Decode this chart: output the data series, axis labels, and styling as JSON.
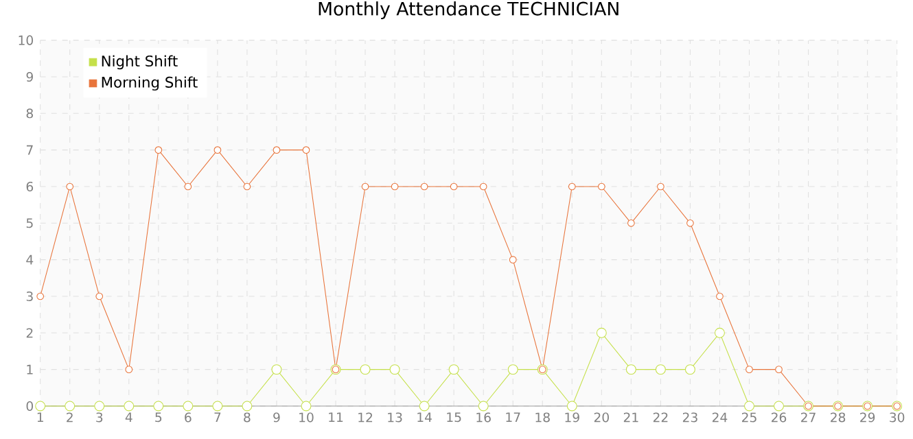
{
  "chart_data": {
    "type": "line",
    "title": "Monthly Attendance TECHNICIAN",
    "x": [
      1,
      2,
      3,
      4,
      5,
      6,
      7,
      8,
      9,
      10,
      11,
      12,
      13,
      14,
      15,
      16,
      17,
      18,
      19,
      20,
      21,
      22,
      23,
      24,
      25,
      26,
      27,
      28,
      29,
      30
    ],
    "series": [
      {
        "name": "Night Shift",
        "color": "#c5e04a",
        "values": [
          0,
          0,
          0,
          0,
          0,
          0,
          0,
          0,
          1,
          0,
          1,
          1,
          1,
          0,
          1,
          0,
          1,
          1,
          0,
          2,
          1,
          1,
          1,
          2,
          0,
          0,
          0,
          0,
          0,
          0
        ]
      },
      {
        "name": "Morning Shift",
        "color": "#e8743b",
        "values": [
          3,
          6,
          3,
          1,
          7,
          6,
          7,
          6,
          7,
          7,
          1,
          6,
          6,
          6,
          6,
          6,
          4,
          1,
          6,
          6,
          5,
          6,
          5,
          3,
          1,
          1,
          0,
          0,
          0,
          0
        ]
      }
    ],
    "xlim": [
      1,
      30
    ],
    "ylim": [
      0,
      10
    ],
    "xticks": [
      1,
      2,
      3,
      4,
      5,
      6,
      7,
      8,
      9,
      10,
      11,
      12,
      13,
      14,
      15,
      16,
      17,
      18,
      19,
      20,
      21,
      22,
      23,
      24,
      25,
      26,
      27,
      28,
      29,
      30
    ],
    "yticks": [
      0,
      1,
      2,
      3,
      4,
      5,
      6,
      7,
      8,
      9,
      10
    ],
    "grid": true,
    "legend": "top left",
    "marker": "circle",
    "line_style": "solid"
  }
}
